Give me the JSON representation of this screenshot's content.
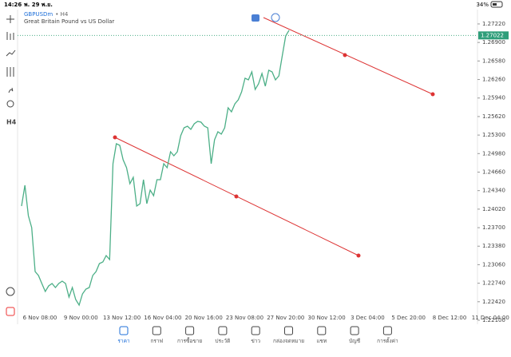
{
  "status_bar": {
    "time": "14:26",
    "date": "พ. 29 พ.ย.",
    "battery": "34%"
  },
  "header": {
    "symbol": "GBPUSDm",
    "timeframe": "• H4",
    "description": "Great Britain Pound vs US Dollar"
  },
  "toolbar": {
    "timeframe": "H4"
  },
  "chart": {
    "type": "line",
    "color": "#4caf87",
    "values": [
      1.24073,
      1.24432,
      1.23908,
      1.23701,
      1.22942,
      1.22873,
      1.22735,
      1.22597,
      1.22693,
      1.22735,
      1.22666,
      1.22735,
      1.22776,
      1.22735,
      1.225,
      1.22666,
      1.22459,
      1.22362,
      1.22555,
      1.22638,
      1.22666,
      1.22873,
      1.22942,
      1.2308,
      1.23108,
      1.23218,
      1.23149,
      1.24805,
      1.2515,
      1.25122,
      1.24874,
      1.24736,
      1.2446,
      1.2457,
      1.24073,
      1.24115,
      1.24529,
      1.24115,
      1.2435,
      1.24253,
      1.24529,
      1.24529,
      1.24805,
      1.24736,
      1.25012,
      1.24943,
      1.25012,
      1.25288,
      1.25426,
      1.25453,
      1.25398,
      1.25495,
      1.25536,
      1.25523,
      1.25453,
      1.25426,
      1.24805,
      1.25219,
      1.25357,
      1.25316,
      1.25426,
      1.25771,
      1.25702,
      1.2584,
      1.25909,
      1.26047,
      1.26282,
      1.26254,
      1.26392,
      1.26088,
      1.26185,
      1.26364,
      1.26144,
      1.2642,
      1.26392,
      1.26254,
      1.26323,
      1.26668,
      1.27013,
      1.2711
    ],
    "ylim": [
      1.22031,
      1.27468
    ],
    "yticks": [
      {
        "value": 1.2722,
        "label": "1.27220"
      },
      {
        "value": 1.269,
        "label": "1.26900"
      },
      {
        "value": 1.2658,
        "label": "1.26580"
      },
      {
        "value": 1.2626,
        "label": "1.26260"
      },
      {
        "value": 1.2594,
        "label": "1.25940"
      },
      {
        "value": 1.2562,
        "label": "1.25620"
      },
      {
        "value": 1.253,
        "label": "1.25300"
      },
      {
        "value": 1.2498,
        "label": "1.24980"
      },
      {
        "value": 1.2466,
        "label": "1.24660"
      },
      {
        "value": 1.2434,
        "label": "1.24340"
      },
      {
        "value": 1.2402,
        "label": "1.24020"
      },
      {
        "value": 1.237,
        "label": "1.23700"
      },
      {
        "value": 1.2338,
        "label": "1.23380"
      },
      {
        "value": 1.2306,
        "label": "1.23060"
      },
      {
        "value": 1.2274,
        "label": "1.22740"
      },
      {
        "value": 1.2242,
        "label": "1.22420"
      },
      {
        "value": 1.221,
        "label": "1.22100"
      }
    ],
    "current_price": 1.27022,
    "x_labels": [
      "6 Nov 08:00",
      "9 Nov 00:00",
      "13 Nov 12:00",
      "16 Nov 04:00",
      "20 Nov 16:00",
      "23 Nov 08:00",
      "27 Nov 20:00",
      "30 Nov 12:00",
      "3 Dec 04:00",
      "5 Dec 20:00",
      "8 Dec 12:00",
      "11 Dec 04:00"
    ]
  },
  "tab_bar": [
    "ราคา",
    "กราฟ",
    "การซื้อขาย",
    "ประวัติ",
    "ข่าว",
    "กล่องจดหมาย",
    "แชท",
    "บัญชี",
    "การตั้งค่า"
  ]
}
